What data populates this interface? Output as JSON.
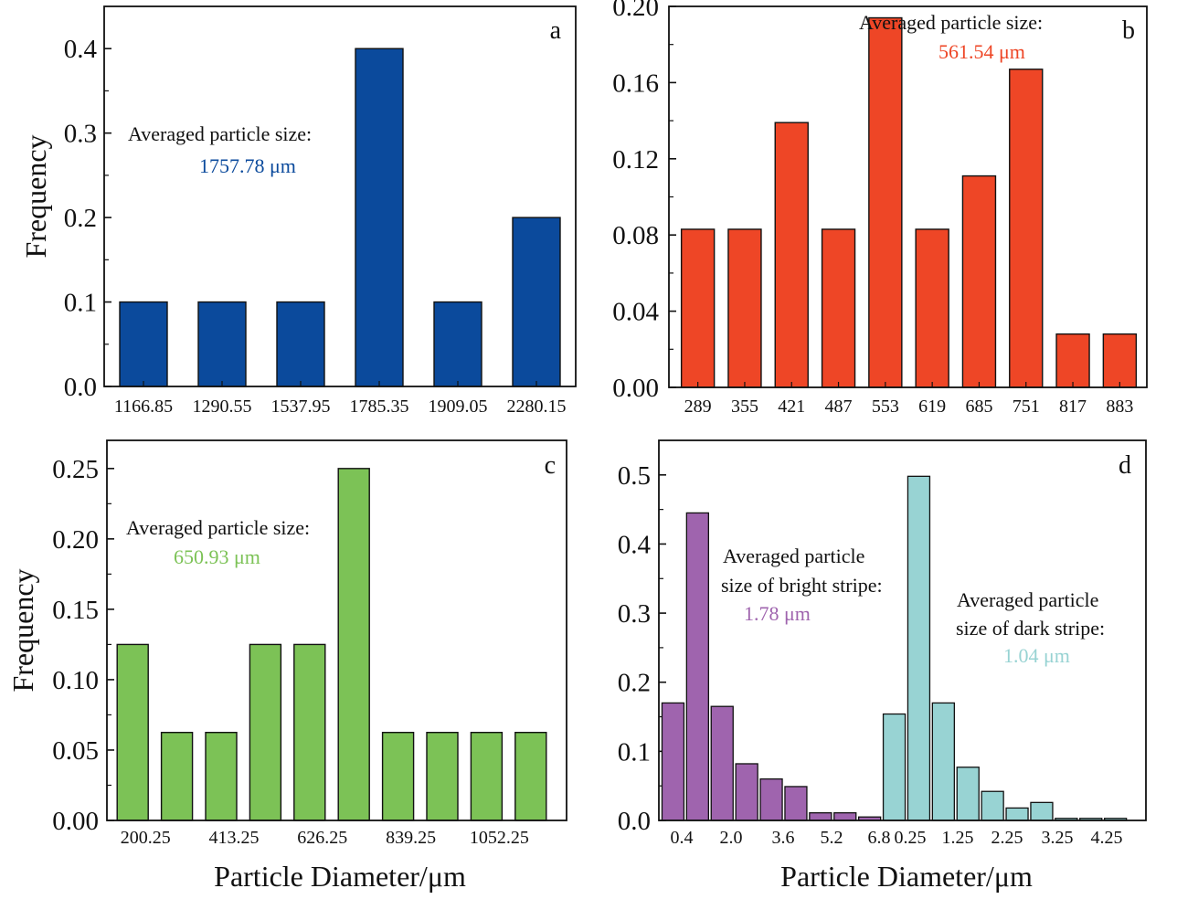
{
  "shared": {
    "ylabel": "Frequency",
    "xlabel": "Particle Diameter/μm"
  },
  "chart_data": [
    {
      "panel": "a",
      "type": "bar",
      "categories": [
        "1166.85",
        "1290.55",
        "1537.95",
        "1785.35",
        "1909.05",
        "2280.15"
      ],
      "values": [
        0.1,
        0.1,
        0.1,
        0.4,
        0.1,
        0.2
      ],
      "ylim": [
        0,
        0.45
      ],
      "yticks": [
        "0.0",
        "0.1",
        "0.2",
        "0.3",
        "0.4"
      ],
      "ytick_values": [
        0,
        0.1,
        0.2,
        0.3,
        0.4
      ],
      "ylabel": "Frequency",
      "xlabel": "",
      "color": "#0b4a9c",
      "annotation_label": "Averaged particle size:",
      "annotation_value": "1757.78 μm",
      "annotation_color": "#0b4a9c"
    },
    {
      "panel": "b",
      "type": "bar",
      "categories": [
        "289",
        "355",
        "421",
        "487",
        "553",
        "619",
        "685",
        "751",
        "817",
        "883"
      ],
      "values": [
        0.083,
        0.083,
        0.139,
        0.083,
        0.194,
        0.083,
        0.111,
        0.167,
        0.028,
        0.028
      ],
      "ylim": [
        0,
        0.2
      ],
      "yticks": [
        "0.00",
        "0.04",
        "0.08",
        "0.12",
        "0.16",
        "0.20"
      ],
      "ytick_values": [
        0,
        0.04,
        0.08,
        0.12,
        0.16,
        0.2
      ],
      "ylabel": "",
      "xlabel": "",
      "color": "#ee4626",
      "annotation_label": "Averaged particle size:",
      "annotation_value": "561.54 μm",
      "annotation_color": "#ee4626"
    },
    {
      "panel": "c",
      "type": "bar",
      "categories": [
        "200.25",
        "",
        "413.25",
        "",
        "626.25",
        "",
        "839.25",
        "",
        "1052.25",
        ""
      ],
      "values": [
        0.125,
        0.0625,
        0.0625,
        0.125,
        0.125,
        0.25,
        0.0625,
        0.0625,
        0.0625,
        0.0625
      ],
      "ylim": [
        0,
        0.27
      ],
      "yticks": [
        "0.00",
        "0.05",
        "0.10",
        "0.15",
        "0.20",
        "0.25"
      ],
      "ytick_values": [
        0,
        0.05,
        0.1,
        0.15,
        0.2,
        0.25
      ],
      "ylabel": "Frequency",
      "xlabel": "Particle Diameter/μm",
      "color": "#7cc256",
      "annotation_label": "Averaged particle size:",
      "annotation_value": "650.93 μm",
      "annotation_color": "#7cc256"
    },
    {
      "panel": "d",
      "type": "bar",
      "ylim": [
        0,
        0.55
      ],
      "yticks": [
        "0.0",
        "0.1",
        "0.2",
        "0.3",
        "0.4",
        "0.5"
      ],
      "ytick_values": [
        0,
        0.1,
        0.2,
        0.3,
        0.4,
        0.5
      ],
      "ylabel": "",
      "xlabel": "Particle Diameter/μm",
      "xtick_labels": [
        "0.4",
        "2.0",
        "3.6",
        "5.2",
        "6.8",
        "0.25",
        "1.25",
        "2.25",
        "3.25",
        "4.25"
      ],
      "series": [
        {
          "name": "bright stripe",
          "color": "#9f64ae",
          "values": [
            0.17,
            0.445,
            0.165,
            0.082,
            0.06,
            0.049,
            0.011,
            0.011,
            0.005
          ]
        },
        {
          "name": "dark stripe",
          "color": "#98d3d3",
          "values": [
            0.154,
            0.498,
            0.17,
            0.077,
            0.042,
            0.018,
            0.026,
            0.003,
            0.003,
            0.003
          ]
        }
      ],
      "annotations": [
        {
          "line1": "Averaged particle",
          "line2": "size of bright stripe:",
          "value": "1.78 μm",
          "value_color": "#9f64ae"
        },
        {
          "line1": "Averaged particle",
          "line2": "size of dark stripe:",
          "value": "1.04 μm",
          "value_color": "#98d3d3"
        }
      ]
    }
  ]
}
